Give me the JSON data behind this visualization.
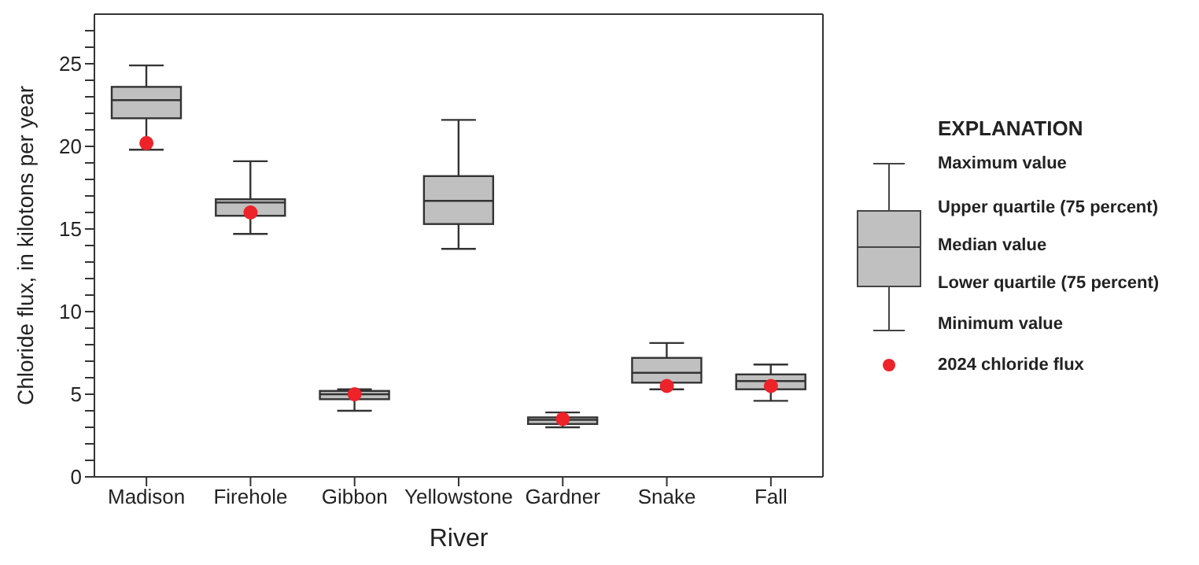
{
  "chart_data": {
    "type": "box",
    "xlabel": "River",
    "ylabel": "Chloride flux, in kilotons per year",
    "legend_title": "EXPLANATION",
    "legend": "right",
    "marker": "circle",
    "categories": [
      "Madison",
      "Firehole",
      "Gibbon",
      "Yellowstone",
      "Gardner",
      "Snake",
      "Fall"
    ],
    "ylim": [
      0,
      28
    ],
    "yticks": [
      0,
      {
        "value": 1,
        "label": null
      },
      {
        "value": 2,
        "label": null
      },
      {
        "value": 3,
        "label": null
      },
      {
        "value": 4,
        "label": null
      },
      5,
      {
        "value": 6,
        "label": null
      },
      {
        "value": 7,
        "label": null
      },
      {
        "value": 8,
        "label": null
      },
      {
        "value": 9,
        "label": null
      },
      10,
      {
        "value": 11,
        "label": null
      },
      {
        "value": 12,
        "label": null
      },
      {
        "value": 13,
        "label": null
      },
      {
        "value": 14,
        "label": null
      },
      15,
      {
        "value": 16,
        "label": null
      },
      {
        "value": 17,
        "label": null
      },
      {
        "value": 18,
        "label": null
      },
      {
        "value": 19,
        "label": null
      },
      20,
      {
        "value": 21,
        "label": null
      },
      {
        "value": 22,
        "label": null
      },
      {
        "value": 23,
        "label": null
      },
      {
        "value": 24,
        "label": null
      },
      25,
      {
        "value": 26,
        "label": null
      },
      {
        "value": 27,
        "label": null
      }
    ],
    "annotations": [
      "Maximum value",
      "Upper quartile (75 percent)",
      "Median value",
      "Lower quartile (75 percent)",
      "Minimum value"
    ],
    "series": [
      {
        "color": "#c0c0c0",
        "boxes": [
          {
            "low": 19.8,
            "q1": 21.7,
            "median": 22.8,
            "q3": 23.6,
            "high": 24.9
          },
          {
            "low": 14.7,
            "q1": 15.8,
            "median": 16.6,
            "q3": 16.8,
            "high": 19.1
          },
          {
            "low": 4.0,
            "q1": 4.7,
            "median": 5.0,
            "q3": 5.2,
            "high": 5.3
          },
          {
            "low": 13.8,
            "q1": 15.3,
            "median": 16.7,
            "q3": 18.2,
            "high": 21.6
          },
          {
            "low": 3.0,
            "q1": 3.2,
            "median": 3.45,
            "q3": 3.6,
            "high": 3.9
          },
          {
            "low": 5.3,
            "q1": 5.7,
            "median": 6.3,
            "q3": 7.2,
            "high": 8.1
          },
          {
            "low": 4.6,
            "q1": 5.3,
            "median": 5.8,
            "q3": 6.2,
            "high": 6.8
          }
        ]
      },
      {
        "type": "scatter",
        "name": "2024 chloride flux",
        "color": "#ee2229",
        "x": [
          "Madison",
          "Firehole",
          "Gibbon",
          "Yellowstone",
          "Gardner",
          "Snake",
          "Fall"
        ],
        "values": [
          20.2,
          16.0,
          5.0,
          null,
          3.5,
          5.5,
          5.5
        ]
      }
    ]
  }
}
